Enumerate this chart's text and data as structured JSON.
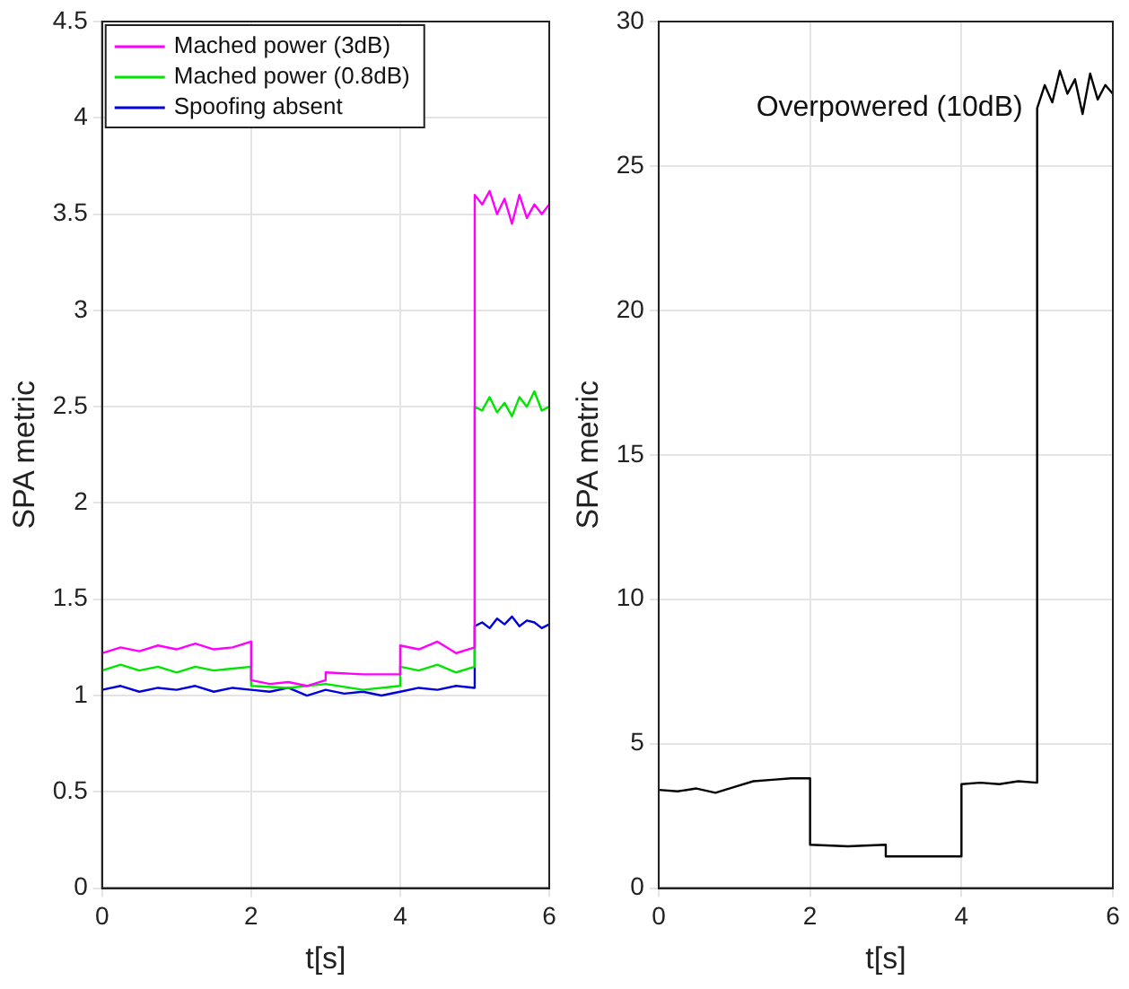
{
  "chart_data": [
    {
      "type": "line",
      "xlabel": "t[s]",
      "ylabel": "SPA metric",
      "xlim": [
        0,
        6
      ],
      "xticks": [
        0,
        2,
        4,
        6
      ],
      "ylim": [
        0,
        4.5
      ],
      "yticks": [
        0,
        0.5,
        1,
        1.5,
        2,
        2.5,
        3,
        3.5,
        4,
        4.5
      ],
      "grid": true,
      "legend": "top left",
      "marker": "none",
      "line_style": "solid",
      "series": [
        {
          "name": "Mached power (3dB)",
          "color": "#ff00ff",
          "x": [
            0,
            0.25,
            0.5,
            0.75,
            1,
            1.25,
            1.5,
            1.75,
            2,
            2,
            2.25,
            2.5,
            2.75,
            3,
            3,
            3.5,
            4,
            4,
            4.25,
            4.5,
            4.75,
            5,
            5,
            5.1,
            5.2,
            5.3,
            5.4,
            5.5,
            5.6,
            5.7,
            5.8,
            5.9,
            6
          ],
          "values": [
            1.22,
            1.25,
            1.23,
            1.26,
            1.24,
            1.27,
            1.24,
            1.25,
            1.28,
            1.08,
            1.06,
            1.07,
            1.05,
            1.08,
            1.12,
            1.11,
            1.11,
            1.26,
            1.24,
            1.28,
            1.22,
            1.25,
            3.6,
            3.55,
            3.62,
            3.5,
            3.58,
            3.45,
            3.6,
            3.48,
            3.55,
            3.5,
            3.55
          ]
        },
        {
          "name": "Mached power (0.8dB)",
          "color": "#00e600",
          "x": [
            0,
            0.25,
            0.5,
            0.75,
            1,
            1.25,
            1.5,
            1.75,
            2,
            2,
            2.5,
            3,
            3.5,
            4,
            4,
            4.25,
            4.5,
            4.75,
            5,
            5,
            5.1,
            5.2,
            5.3,
            5.4,
            5.5,
            5.6,
            5.7,
            5.8,
            5.9,
            6
          ],
          "values": [
            1.13,
            1.16,
            1.13,
            1.15,
            1.12,
            1.15,
            1.13,
            1.14,
            1.15,
            1.05,
            1.04,
            1.06,
            1.03,
            1.05,
            1.15,
            1.13,
            1.16,
            1.12,
            1.15,
            2.5,
            2.48,
            2.55,
            2.47,
            2.52,
            2.45,
            2.55,
            2.5,
            2.58,
            2.48,
            2.5
          ]
        },
        {
          "name": "Spoofing absent",
          "color": "#0000dd",
          "x": [
            0,
            0.25,
            0.5,
            0.75,
            1,
            1.25,
            1.5,
            1.75,
            2,
            2.25,
            2.5,
            2.75,
            3,
            3.25,
            3.5,
            3.75,
            4,
            4.25,
            4.5,
            4.75,
            5,
            5,
            5.1,
            5.2,
            5.3,
            5.4,
            5.5,
            5.6,
            5.7,
            5.8,
            5.9,
            6
          ],
          "values": [
            1.03,
            1.05,
            1.02,
            1.04,
            1.03,
            1.05,
            1.02,
            1.04,
            1.03,
            1.02,
            1.04,
            1.0,
            1.03,
            1.01,
            1.02,
            1.0,
            1.02,
            1.04,
            1.03,
            1.05,
            1.04,
            1.36,
            1.38,
            1.35,
            1.4,
            1.37,
            1.41,
            1.36,
            1.39,
            1.38,
            1.35,
            1.37
          ]
        }
      ]
    },
    {
      "type": "line",
      "xlabel": "t[s]",
      "ylabel": "SPA metric",
      "xlim": [
        0,
        6
      ],
      "xticks": [
        0,
        2,
        4,
        6
      ],
      "ylim": [
        0,
        30
      ],
      "yticks": [
        0,
        5,
        10,
        15,
        20,
        25,
        30
      ],
      "grid": true,
      "marker": "none",
      "line_style": "solid",
      "series": [
        {
          "name": "Overpowered (10dB)",
          "color": "#000000",
          "x": [
            0,
            0.25,
            0.5,
            0.75,
            1,
            1.25,
            1.5,
            1.75,
            2,
            2,
            2.5,
            3,
            3,
            3.5,
            4,
            4,
            4.25,
            4.5,
            4.75,
            5,
            5,
            5.1,
            5.2,
            5.3,
            5.4,
            5.5,
            5.6,
            5.7,
            5.8,
            5.9,
            6
          ],
          "values": [
            3.4,
            3.35,
            3.45,
            3.3,
            3.5,
            3.7,
            3.75,
            3.8,
            3.8,
            1.5,
            1.45,
            1.5,
            1.1,
            1.1,
            1.1,
            3.6,
            3.65,
            3.6,
            3.7,
            3.65,
            27,
            27.8,
            27.2,
            28.3,
            27.5,
            28,
            26.8,
            28.2,
            27.3,
            27.8,
            27.5
          ]
        }
      ]
    }
  ]
}
